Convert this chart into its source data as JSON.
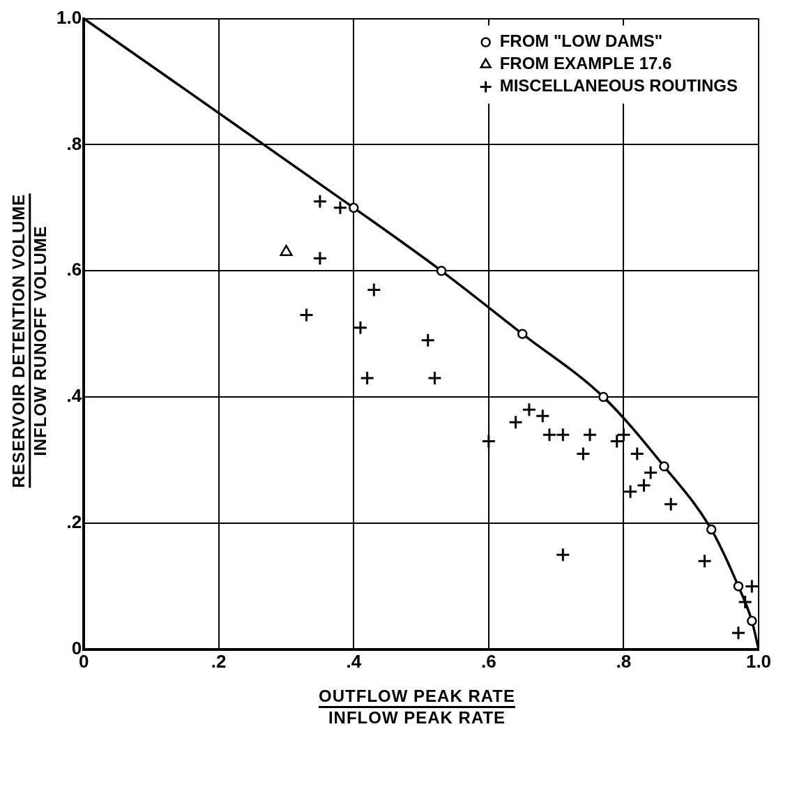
{
  "chart_data": {
    "type": "scatter",
    "xlabel": "OUTFLOW PEAK RATE\nINFLOW PEAK RATE",
    "ylabel": "RESERVOIR DETENTION VOLUME\nINFLOW RUNOFF VOLUME",
    "xlim": [
      0,
      1
    ],
    "ylim": [
      0,
      1
    ],
    "xticks": [
      0,
      {
        "value": 0.2,
        "label": ".2"
      },
      {
        "value": 0.4,
        "label": ".4"
      },
      {
        "value": 0.6,
        "label": ".6"
      },
      {
        "value": 0.8,
        "label": ".8"
      },
      {
        "value": 1,
        "label": "1.0"
      }
    ],
    "yticks": [
      0,
      {
        "value": 0.2,
        "label": ".2"
      },
      {
        "value": 0.4,
        "label": ".4"
      },
      {
        "value": 0.6,
        "label": ".6"
      },
      {
        "value": 0.8,
        "label": ".8"
      },
      {
        "value": 1,
        "label": "1.0"
      }
    ],
    "grid": true,
    "legend": "top right",
    "series": [
      {
        "type": "line",
        "color": "#000000",
        "marker": "none",
        "line_style": "solid",
        "x": [
          0,
          0.4,
          0.53,
          0.65,
          0.77,
          0.86,
          0.93,
          0.97,
          0.99,
          1.0
        ],
        "values": [
          1.0,
          0.7,
          0.6,
          0.5,
          0.4,
          0.29,
          0.19,
          0.1,
          0.045,
          0
        ]
      },
      {
        "type": "scatter",
        "name": "FROM \"LOW DAMS\"",
        "color": "#000000",
        "marker": "circle",
        "x": [
          0.4,
          0.53,
          0.65,
          0.77,
          0.86,
          0.93,
          0.97,
          0.99
        ],
        "values": [
          0.7,
          0.6,
          0.5,
          0.4,
          0.29,
          0.19,
          0.1,
          0.045
        ]
      },
      {
        "type": "scatter",
        "name": "FROM EXAMPLE 17.6",
        "color": "#000000",
        "marker": "triangle",
        "x": [
          0.3
        ],
        "values": [
          0.63
        ]
      },
      {
        "type": "scatter",
        "name": "MISCELLANEOUS ROUTINGS",
        "color": "#000000",
        "marker": "cross",
        "x": [
          0.35,
          0.38,
          0.35,
          0.43,
          0.33,
          0.41,
          0.51,
          0.42,
          0.52,
          0.6,
          0.64,
          0.66,
          0.68,
          0.69,
          0.71,
          0.75,
          0.74,
          0.79,
          0.8,
          0.82,
          0.84,
          0.81,
          0.83,
          0.71,
          0.87,
          0.92,
          0.99,
          0.98,
          0.97
        ],
        "values": [
          0.71,
          0.7,
          0.62,
          0.57,
          0.53,
          0.51,
          0.49,
          0.43,
          0.43,
          0.33,
          0.36,
          0.38,
          0.37,
          0.34,
          0.34,
          0.34,
          0.31,
          0.33,
          0.34,
          0.31,
          0.28,
          0.25,
          0.26,
          0.15,
          0.23,
          0.14,
          0.1,
          0.075,
          0.026
        ]
      }
    ]
  }
}
